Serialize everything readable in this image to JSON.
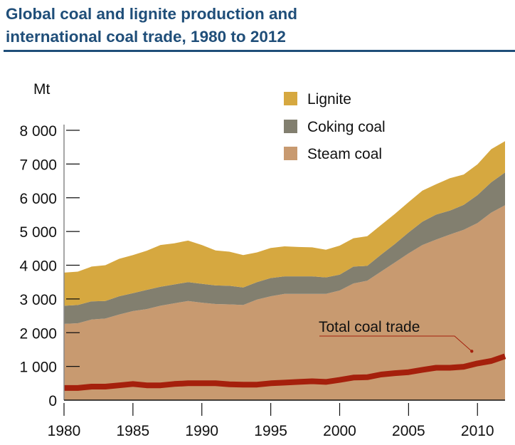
{
  "title_line1": "Global coal and lignite production and",
  "title_line2": "international coal trade, 1980 to 2012",
  "colors": {
    "title": "#1f4e79",
    "lignite": "#d6a840",
    "coking": "#827f6f",
    "steam": "#c89a70",
    "trade": "#a5200c",
    "axis": "#888888"
  },
  "chart_data": {
    "type": "area",
    "title": "Global coal and lignite production and international coal trade, 1980 to 2012",
    "xlabel": "",
    "ylabel": "Mt",
    "xlim": [
      1980,
      2012
    ],
    "ylim": [
      0,
      8000
    ],
    "grid": false,
    "legend_position": "top-right",
    "x_ticks": [
      1980,
      1985,
      1990,
      1995,
      2000,
      2005,
      2010
    ],
    "x_tick_labels": [
      "1980",
      "1985",
      "1990",
      "1995",
      "2000",
      "2005",
      "2010"
    ],
    "y_ticks": [
      0,
      1000,
      2000,
      3000,
      4000,
      5000,
      6000,
      7000,
      8000
    ],
    "y_tick_labels": [
      "0",
      "1 000",
      "2 000",
      "3 000",
      "4 000",
      "5 000",
      "6 000",
      "7 000",
      "8 000"
    ],
    "x": [
      1980,
      1981,
      1982,
      1983,
      1984,
      1985,
      1986,
      1987,
      1988,
      1989,
      1990,
      1991,
      1992,
      1993,
      1994,
      1995,
      1996,
      1997,
      1998,
      1999,
      2000,
      2001,
      2002,
      2003,
      2004,
      2005,
      2006,
      2007,
      2008,
      2009,
      2010,
      2011,
      2012
    ],
    "stacked": true,
    "series": [
      {
        "name": "Steam coal",
        "legend": "Steam coal",
        "values": [
          2260,
          2280,
          2390,
          2420,
          2540,
          2640,
          2700,
          2800,
          2870,
          2940,
          2890,
          2850,
          2840,
          2820,
          2980,
          3080,
          3150,
          3150,
          3150,
          3150,
          3250,
          3460,
          3540,
          3810,
          4080,
          4350,
          4600,
          4760,
          4910,
          5050,
          5250,
          5560,
          5780
        ]
      },
      {
        "name": "Coking coal",
        "legend": "Coking coal",
        "values": [
          540,
          540,
          540,
          520,
          540,
          530,
          570,
          560,
          560,
          560,
          560,
          550,
          550,
          520,
          520,
          540,
          520,
          520,
          520,
          490,
          470,
          500,
          440,
          500,
          550,
          620,
          690,
          740,
          710,
          740,
          830,
          900,
          970
        ]
      },
      {
        "name": "Lignite",
        "legend": "Lignite",
        "values": [
          980,
          990,
          1030,
          1060,
          1110,
          1130,
          1160,
          1240,
          1220,
          1230,
          1150,
          1040,
          1010,
          960,
          880,
          890,
          890,
          870,
          860,
          820,
          860,
          840,
          880,
          880,
          890,
          900,
          920,
          900,
          960,
          900,
          910,
          980,
          930
        ]
      }
    ],
    "line_series": [
      {
        "name": "Total coal trade",
        "values": [
          360,
          360,
          400,
          400,
          440,
          480,
          440,
          440,
          480,
          500,
          500,
          500,
          470,
          460,
          460,
          500,
          520,
          540,
          560,
          540,
          600,
          670,
          680,
          760,
          800,
          830,
          900,
          960,
          960,
          990,
          1090,
          1160,
          1300
        ]
      }
    ],
    "annotations": [
      {
        "text": "Total coal trade",
        "points_to_year": 2010
      }
    ]
  }
}
